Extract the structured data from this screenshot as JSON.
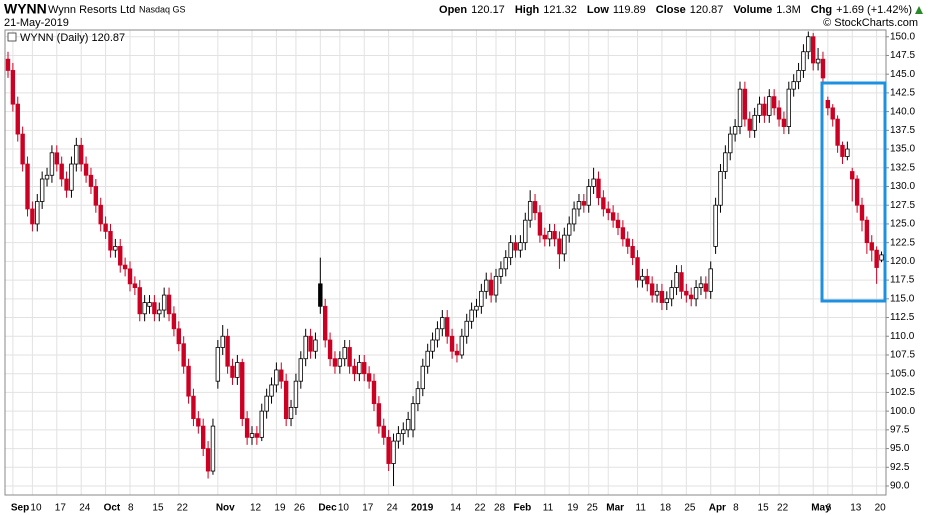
{
  "header": {
    "symbol": "WYNN",
    "name": "Wynn Resorts Ltd",
    "exchange": "Nasdaq GS",
    "date": "21-May-2019",
    "credit": "© StockCharts.com",
    "quote": [
      {
        "label": "Open",
        "value": "120.17"
      },
      {
        "label": "High",
        "value": "121.32"
      },
      {
        "label": "Low",
        "value": "119.89"
      },
      {
        "label": "Close",
        "value": "120.87"
      },
      {
        "label": "Volume",
        "value": "1.3M"
      },
      {
        "label": "Chg",
        "value": "+1.69 (+1.42%)"
      }
    ]
  },
  "chart_data": {
    "type": "candlestick",
    "legend_label": "WYNN (Daily) 120.87",
    "up_color": "#000000",
    "down_color": "#cc0022",
    "grid": true,
    "ylim": [
      88.8,
      150.9
    ],
    "yticks": [
      {
        "value": 90,
        "label": "90.0"
      },
      {
        "value": 92.5,
        "label": "92.5"
      },
      {
        "value": 95,
        "label": "95.0"
      },
      {
        "value": 97.5,
        "label": "97.5"
      },
      {
        "value": 100,
        "label": "100.0"
      },
      {
        "value": 102.5,
        "label": "102.5"
      },
      {
        "value": 105,
        "label": "105.0"
      },
      {
        "value": 107.5,
        "label": "107.5"
      },
      {
        "value": 110,
        "label": "110.0"
      },
      {
        "value": 112.5,
        "label": "112.5"
      },
      {
        "value": 115,
        "label": "115.0"
      },
      {
        "value": 117.5,
        "label": "117.5"
      },
      {
        "value": 120,
        "label": "120.0"
      },
      {
        "value": 122.5,
        "label": "122.5"
      },
      {
        "value": 125,
        "label": "125.0"
      },
      {
        "value": 127.5,
        "label": "127.5"
      },
      {
        "value": 130,
        "label": "130.0"
      },
      {
        "value": 132.5,
        "label": "132.5"
      },
      {
        "value": 135,
        "label": "135.0"
      },
      {
        "value": 137.5,
        "label": "137.5"
      },
      {
        "value": 140,
        "label": "140.0"
      },
      {
        "value": 142.5,
        "label": "142.5"
      },
      {
        "value": 145,
        "label": "145.0"
      },
      {
        "value": 147.5,
        "label": "147.5"
      },
      {
        "value": 150,
        "label": "150.0"
      }
    ],
    "categories": [
      null,
      "Sep",
      null,
      null,
      null,
      "10",
      null,
      null,
      null,
      null,
      "17",
      null,
      null,
      null,
      null,
      "24",
      null,
      null,
      null,
      null,
      "Oct",
      null,
      null,
      null,
      null,
      "8",
      null,
      null,
      null,
      null,
      "15",
      null,
      null,
      null,
      null,
      "22",
      null,
      null,
      null,
      null,
      null,
      null,
      null,
      "Nov",
      null,
      null,
      null,
      null,
      null,
      null,
      "12",
      null,
      null,
      null,
      null,
      "19",
      null,
      null,
      null,
      "26",
      null,
      null,
      null,
      null,
      "Dec",
      null,
      null,
      null,
      "10",
      null,
      null,
      null,
      null,
      "17",
      null,
      null,
      null,
      null,
      "24",
      null,
      null,
      null,
      null,
      "2019",
      null,
      null,
      null,
      null,
      null,
      null,
      null,
      "14",
      null,
      null,
      null,
      null,
      "22",
      null,
      null,
      null,
      "28",
      null,
      null,
      null,
      "Feb",
      null,
      null,
      null,
      null,
      null,
      "11",
      null,
      null,
      null,
      null,
      "19",
      null,
      null,
      null,
      "25",
      null,
      null,
      null,
      "Mar",
      null,
      null,
      null,
      null,
      null,
      "11",
      null,
      null,
      null,
      null,
      "18",
      null,
      null,
      null,
      null,
      "25",
      null,
      null,
      null,
      null,
      "Apr",
      null,
      null,
      null,
      null,
      "8",
      null,
      null,
      null,
      null,
      "15",
      null,
      null,
      null,
      "22",
      null,
      null,
      null,
      null,
      null,
      null,
      "May",
      null,
      null,
      "6",
      null,
      null,
      null,
      null,
      "13",
      null,
      null,
      null,
      null,
      "20",
      null
    ],
    "open": [
      147,
      145.5,
      141,
      137,
      133,
      127,
      125,
      128,
      131,
      131.5,
      134.5,
      133,
      131,
      129.5,
      133,
      135.5,
      133,
      131.5,
      130,
      127.5,
      125,
      124,
      121.5,
      122,
      119.5,
      119,
      117,
      116.5,
      113,
      114,
      114.5,
      113,
      113.5,
      115.5,
      113,
      111,
      109,
      106,
      102,
      99,
      98,
      95,
      92,
      104,
      108.5,
      110,
      106,
      104.5,
      106.5,
      99,
      96.5,
      97,
      96.5,
      100,
      102,
      103.5,
      105.5,
      104,
      99,
      100.5,
      104,
      107,
      110,
      108,
      117,
      114,
      109.5,
      107,
      106,
      107,
      108.5,
      106,
      105,
      106.5,
      105,
      104,
      101,
      98,
      96.5,
      93,
      96,
      97,
      97.5,
      97.5,
      101,
      103,
      106,
      108,
      109.5,
      111,
      112.5,
      110,
      108,
      107.5,
      110,
      112,
      113.5,
      114,
      116,
      117.5,
      115.5,
      118,
      119,
      120.5,
      122.5,
      121.5,
      122.5,
      125.5,
      128,
      126.5,
      123.5,
      123,
      124,
      123,
      121,
      123.5,
      125,
      127,
      128,
      127.5,
      130,
      131,
      128.5,
      127,
      126.5,
      125.5,
      124.5,
      123,
      122,
      120.5,
      117.5,
      118,
      117,
      115.5,
      116,
      114.5,
      115,
      116.5,
      118.5,
      116,
      115.5,
      115,
      116.5,
      117,
      116,
      122,
      127.5,
      132,
      134.5,
      137,
      138,
      143,
      139,
      137.5,
      139.5,
      141,
      139.5,
      142,
      140.5,
      139,
      138,
      143,
      144,
      145.5,
      148,
      150,
      146.5,
      147,
      141.5,
      140.5,
      139,
      135.5,
      134,
      132,
      131,
      127.5,
      125.5,
      122.5,
      121.5,
      120.17
    ],
    "high": [
      148,
      146.5,
      142,
      138,
      134,
      128,
      129,
      132,
      132.5,
      135.5,
      135.5,
      134,
      132,
      134,
      136.5,
      136.5,
      134,
      132.5,
      131,
      128.5,
      126,
      125,
      123,
      123,
      120.5,
      120,
      118,
      117.5,
      115.5,
      115.5,
      115.5,
      114.5,
      116.5,
      116.5,
      114,
      112,
      110,
      107,
      103,
      100,
      99,
      96,
      99,
      109.5,
      111.5,
      111,
      107,
      107.5,
      107,
      100,
      98,
      98,
      101,
      103,
      104.5,
      106.5,
      106.5,
      105,
      101.5,
      105,
      108,
      111,
      111,
      110.5,
      120.5,
      115,
      110.5,
      108,
      108,
      109.5,
      109.5,
      107,
      107.5,
      107.5,
      106,
      105,
      102,
      99,
      97.5,
      97,
      98,
      98.5,
      99.9,
      102,
      104,
      107,
      109,
      110.5,
      112,
      113.5,
      113.5,
      111,
      109,
      111,
      113,
      114.5,
      115,
      117,
      118.5,
      118.5,
      119,
      120,
      121.5,
      123.5,
      123.5,
      123.5,
      126.5,
      129.5,
      129,
      127.5,
      124.5,
      125,
      125,
      124,
      124.5,
      126,
      128,
      129,
      129,
      131,
      132.5,
      132,
      129.5,
      128,
      127.5,
      126.5,
      125.5,
      124,
      123,
      121.5,
      119,
      119,
      118,
      117,
      117,
      116,
      117.5,
      119.5,
      119.5,
      117,
      116.5,
      117.5,
      118,
      118,
      120,
      128.5,
      133,
      135.5,
      138,
      139,
      144,
      144,
      140,
      140.5,
      142,
      142,
      143,
      143,
      141.5,
      140,
      144,
      145,
      146.5,
      149,
      150.7,
      150.5,
      148.5,
      148,
      142,
      141,
      139.5,
      136,
      136,
      132.5,
      131.5,
      128.5,
      126,
      123.5,
      122,
      121.32
    ],
    "low": [
      144.5,
      140,
      136,
      132,
      126,
      124,
      124,
      127,
      130,
      130.5,
      132,
      130,
      128.5,
      128.5,
      132,
      132,
      130.5,
      129,
      126.5,
      124,
      123,
      120.5,
      120.5,
      118.5,
      118,
      116,
      115.5,
      112,
      112,
      113,
      112,
      112,
      112.5,
      112,
      110,
      108,
      105,
      101,
      98,
      97,
      94,
      91,
      91.5,
      103,
      107.5,
      105,
      103.5,
      103.5,
      98,
      95.5,
      95.5,
      95.5,
      96,
      99,
      101,
      102.5,
      103,
      98,
      98,
      99.5,
      103,
      106,
      107,
      107,
      113,
      108.5,
      106,
      105,
      105,
      106,
      105,
      104,
      104,
      104,
      103,
      100,
      97,
      95.5,
      92,
      90,
      95,
      95.5,
      96.5,
      96.5,
      100,
      102,
      105,
      107,
      108.5,
      110,
      109,
      107,
      106.5,
      107,
      109,
      111,
      112.5,
      113,
      115,
      114.5,
      114.5,
      117,
      118,
      119.5,
      120.5,
      120.5,
      121.5,
      124.5,
      125.5,
      122.5,
      122,
      122,
      122,
      119,
      120,
      122.5,
      124,
      126,
      126.5,
      126.5,
      129,
      127.5,
      126,
      125.5,
      124.5,
      123.5,
      122,
      121,
      119.5,
      116.5,
      116.5,
      116,
      114.5,
      114.5,
      113.5,
      113.5,
      114,
      115.5,
      115,
      114.5,
      114,
      114,
      115.5,
      115,
      115,
      121,
      126.5,
      131,
      133.5,
      136,
      137,
      138,
      136.5,
      136.5,
      138.5,
      138.5,
      138.5,
      139.5,
      138,
      137,
      137,
      142,
      143,
      144.5,
      147,
      145.5,
      145.5,
      143.5,
      139.5,
      138,
      134.5,
      133,
      133.5,
      128,
      126.5,
      124,
      121,
      120,
      117,
      119.89
    ],
    "close": [
      145.5,
      141,
      137,
      133,
      127,
      125,
      128,
      131,
      131.5,
      134.5,
      133,
      131,
      129.5,
      133,
      135.5,
      133,
      131.5,
      130,
      127.5,
      125,
      124,
      121.5,
      122,
      119.5,
      119,
      117,
      116.5,
      113,
      114.5,
      114.5,
      113,
      113.5,
      115.5,
      113,
      111,
      109,
      106,
      102,
      99,
      98,
      95,
      92,
      98,
      108.5,
      110,
      106,
      104.5,
      106.5,
      99,
      96.5,
      97,
      96.5,
      100,
      102,
      103.5,
      105.5,
      104,
      99,
      100.5,
      104,
      107,
      110,
      108,
      109.5,
      114,
      109.5,
      107,
      106,
      107,
      108.5,
      106,
      105,
      106.5,
      105,
      104,
      101,
      98,
      96.5,
      93,
      96,
      97,
      97.5,
      98.9,
      101,
      103,
      106,
      108,
      109.5,
      111,
      112.5,
      110,
      108,
      107.5,
      110,
      112,
      113.5,
      114,
      116,
      117.5,
      115.5,
      118,
      119,
      120.5,
      122.5,
      121.5,
      122.5,
      125.5,
      128,
      126.5,
      123.5,
      123,
      124,
      123,
      121,
      123.5,
      125,
      127,
      128,
      127.5,
      130,
      131,
      128.5,
      127,
      126.5,
      125.5,
      124.5,
      123,
      122,
      120.5,
      117.5,
      118,
      117,
      115.5,
      116,
      114.5,
      115,
      116.5,
      118.5,
      116,
      115.5,
      115,
      116.5,
      117,
      116,
      119,
      127.5,
      132,
      134.5,
      137,
      138,
      143,
      139,
      137.5,
      139.5,
      141,
      139.5,
      142,
      140.5,
      139,
      138,
      143,
      144,
      145.5,
      148,
      150,
      146.5,
      147,
      144.5,
      140.5,
      139,
      135.5,
      134,
      135,
      131,
      127.5,
      125.5,
      122.5,
      121.5,
      119.18,
      120.87
    ]
  }
}
